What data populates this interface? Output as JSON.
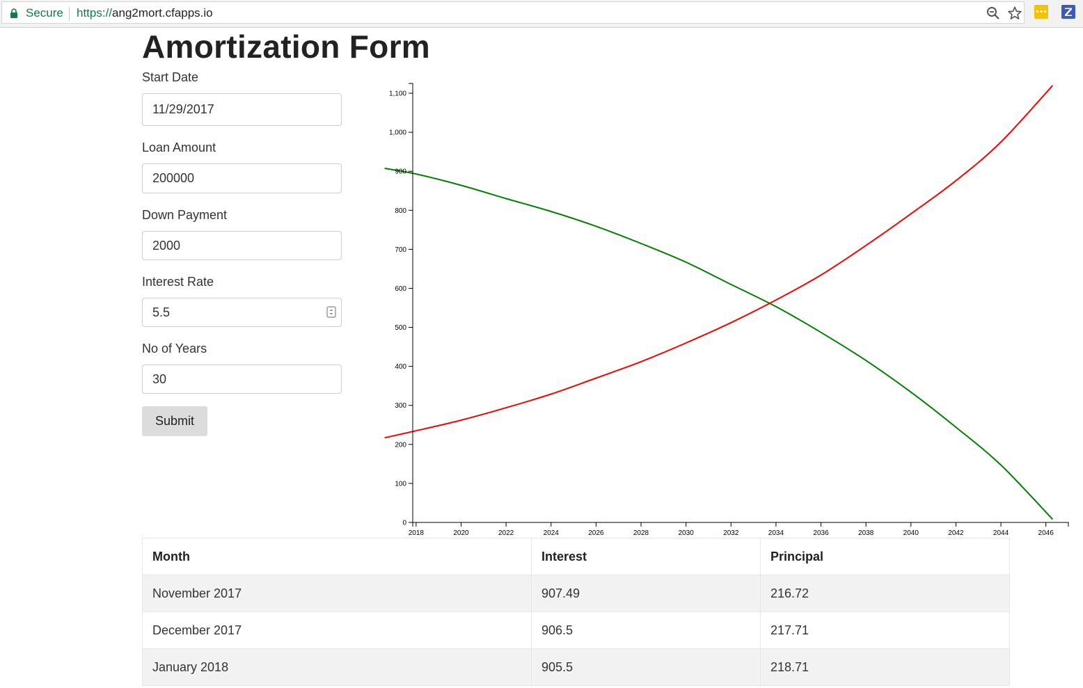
{
  "browser": {
    "secure_label": "Secure",
    "url_scheme": "https://",
    "url_host": "ang2mort.cfapps.io",
    "icons": [
      "lock-icon",
      "zoom-icon",
      "star-icon",
      "extension-icon",
      "extension-z-icon"
    ],
    "colors": {
      "secure": "#0b8043"
    }
  },
  "page": {
    "title": "Amortization Form"
  },
  "form": {
    "start_date": {
      "label": "Start Date",
      "value": "11/29/2017"
    },
    "loan_amount": {
      "label": "Loan Amount",
      "value": "200000"
    },
    "down_payment": {
      "label": "Down Payment",
      "value": "2000"
    },
    "interest_rate": {
      "label": "Interest Rate",
      "value": "5.5"
    },
    "years": {
      "label": "No of Years",
      "value": "30"
    },
    "submit_label": "Submit"
  },
  "chart_data": {
    "type": "line",
    "x_ticks": [
      2018,
      2020,
      2022,
      2024,
      2026,
      2028,
      2030,
      2032,
      2034,
      2036,
      2038,
      2040,
      2042,
      2044,
      2046
    ],
    "y_ticks": [
      0,
      100,
      200,
      300,
      400,
      500,
      600,
      700,
      800,
      900,
      1000,
      1100
    ],
    "y_tick_labels": [
      "0",
      "100",
      "200",
      "300",
      "400",
      "500",
      "600",
      "700",
      "800",
      "900",
      "1,000",
      "1,100"
    ],
    "xlim": [
      2017.85,
      2047.0
    ],
    "ylim": [
      0,
      1125
    ],
    "grid": false,
    "series": [
      {
        "color": "#008000",
        "x": [
          2016.6,
          2018,
          2020,
          2022,
          2024,
          2026,
          2028,
          2030,
          2032,
          2034,
          2036,
          2038,
          2040,
          2042,
          2044,
          2046.3
        ],
        "y": [
          907.5,
          893,
          864,
          830,
          797,
          759,
          715,
          667,
          610,
          553,
          487,
          415,
          334,
          244,
          147,
          8
        ]
      },
      {
        "color": "#ff0000",
        "x": [
          2016.6,
          2018,
          2020,
          2022,
          2024,
          2026,
          2028,
          2030,
          2032,
          2034,
          2036,
          2038,
          2040,
          2042,
          2044,
          2046.3
        ],
        "y": [
          217,
          235,
          262,
          294,
          329,
          370,
          412,
          460,
          512,
          570,
          634,
          710,
          791,
          876,
          975,
          1120
        ]
      }
    ]
  },
  "table": {
    "headers": [
      "Month",
      "Interest",
      "Principal"
    ],
    "rows": [
      [
        "November 2017",
        "907.49",
        "216.72"
      ],
      [
        "December 2017",
        "906.5",
        "217.71"
      ],
      [
        "January 2018",
        "905.5",
        "218.71"
      ]
    ]
  }
}
